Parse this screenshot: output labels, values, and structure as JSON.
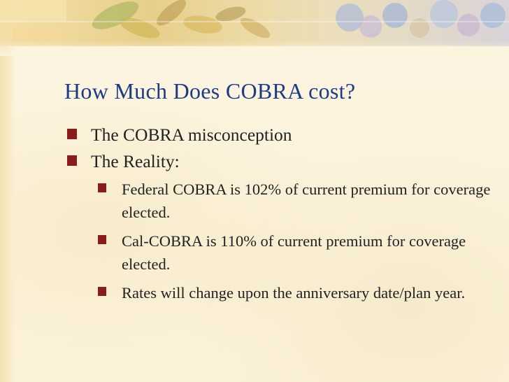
{
  "slide": {
    "title": "How Much Does COBRA cost?",
    "bullets": [
      {
        "text": "The COBRA misconception"
      },
      {
        "text": "The Reality:"
      }
    ],
    "sub_bullets": [
      {
        "text": "Federal COBRA is 102% of current premium for coverage elected."
      },
      {
        "text": "Cal-COBRA is 110% of current premium for coverage elected."
      },
      {
        "text": "Rates will change upon the anniversary date/plan year."
      }
    ]
  },
  "colors": {
    "title": "#1f3b86",
    "bullet_square": "#8b1c1c",
    "body_text": "#222222",
    "background": "#fbf3dc"
  },
  "icons": {
    "bullet": "square-bullet-icon",
    "banner": "floral-banner-image"
  }
}
